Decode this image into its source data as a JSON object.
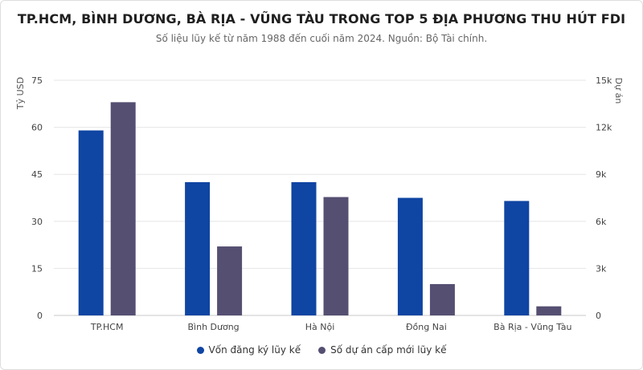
{
  "title": "TP.HCM, BÌNH DƯƠNG, BÀ RỊA - VŨNG TÀU TRONG TOP 5 ĐỊA PHƯƠNG THU HÚT FDI",
  "subtitle": "Số liệu lũy kế từ năm 1988 đến cuối năm 2024. Nguồn: Bộ Tài chính.",
  "chart_data": {
    "type": "bar",
    "categories": [
      "TP.HCM",
      "Bình Dương",
      "Hà Nội",
      "Đồng Nai",
      "Bà Rịa - Vũng Tàu"
    ],
    "series": [
      {
        "name": "Vốn đăng ký lũy kế",
        "axis": "left",
        "color": "#0f45a3",
        "values": [
          59,
          42.5,
          42.5,
          37.5,
          36.5
        ]
      },
      {
        "name": "Số dự án cấp mới lũy kế",
        "axis": "right",
        "color": "#554f72",
        "values": [
          13600,
          4400,
          7550,
          2000,
          580
        ]
      }
    ],
    "ylabel": "Tỷ USD",
    "ylabel_right": "Dự án",
    "ylim": [
      0,
      75
    ],
    "ylim_right": [
      0,
      15000
    ],
    "yticks": [
      "0",
      "15",
      "30",
      "45",
      "60",
      "75"
    ],
    "yticks_right": [
      "0",
      "3k",
      "6k",
      "9k",
      "12k",
      "15k"
    ],
    "grid": true,
    "legend_position": "bottom"
  }
}
